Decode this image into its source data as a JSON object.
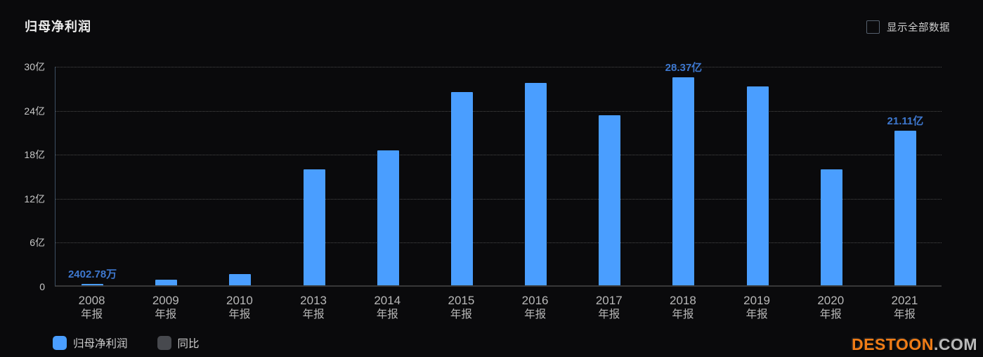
{
  "header": {
    "title": "归母净利润",
    "show_all_label": "显示全部数据"
  },
  "chart_data": {
    "type": "bar",
    "title": "归母净利润",
    "unit": "亿",
    "ylim": [
      0,
      30
    ],
    "grid": "horizontal-dotted",
    "legend_position": "bottom-left",
    "bar_color": "#4a9eff",
    "value_label_color": "#3e78cf",
    "y_axis": {
      "ticks": [
        {
          "label": "30亿",
          "value": 30
        },
        {
          "label": "24亿",
          "value": 24
        },
        {
          "label": "18亿",
          "value": 18
        },
        {
          "label": "12亿",
          "value": 12
        },
        {
          "label": "6亿",
          "value": 6
        },
        {
          "label": "0",
          "value": 0
        }
      ]
    },
    "points": [
      {
        "year": "2008",
        "period": "年报",
        "value": 0.24,
        "label": "2402.78万"
      },
      {
        "year": "2009",
        "period": "年报",
        "value": 0.8
      },
      {
        "year": "2010",
        "period": "年报",
        "value": 1.5
      },
      {
        "year": "2013",
        "period": "年报",
        "value": 15.8
      },
      {
        "year": "2014",
        "period": "年报",
        "value": 18.4
      },
      {
        "year": "2015",
        "period": "年报",
        "value": 26.4
      },
      {
        "year": "2016",
        "period": "年报",
        "value": 27.6
      },
      {
        "year": "2017",
        "period": "年报",
        "value": 23.2
      },
      {
        "year": "2018",
        "period": "年报",
        "value": 28.37,
        "label": "28.37亿"
      },
      {
        "year": "2019",
        "period": "年报",
        "value": 27.1
      },
      {
        "year": "2020",
        "period": "年报",
        "value": 15.8
      },
      {
        "year": "2021",
        "period": "年报",
        "value": 21.11,
        "label": "21.11亿"
      }
    ]
  },
  "legend": [
    {
      "label": "归母净利润",
      "color": "#4a9eff"
    },
    {
      "label": "同比",
      "color": "#47494e"
    }
  ],
  "watermark": {
    "brand": "DESTOON",
    "suffix": ".COM"
  }
}
